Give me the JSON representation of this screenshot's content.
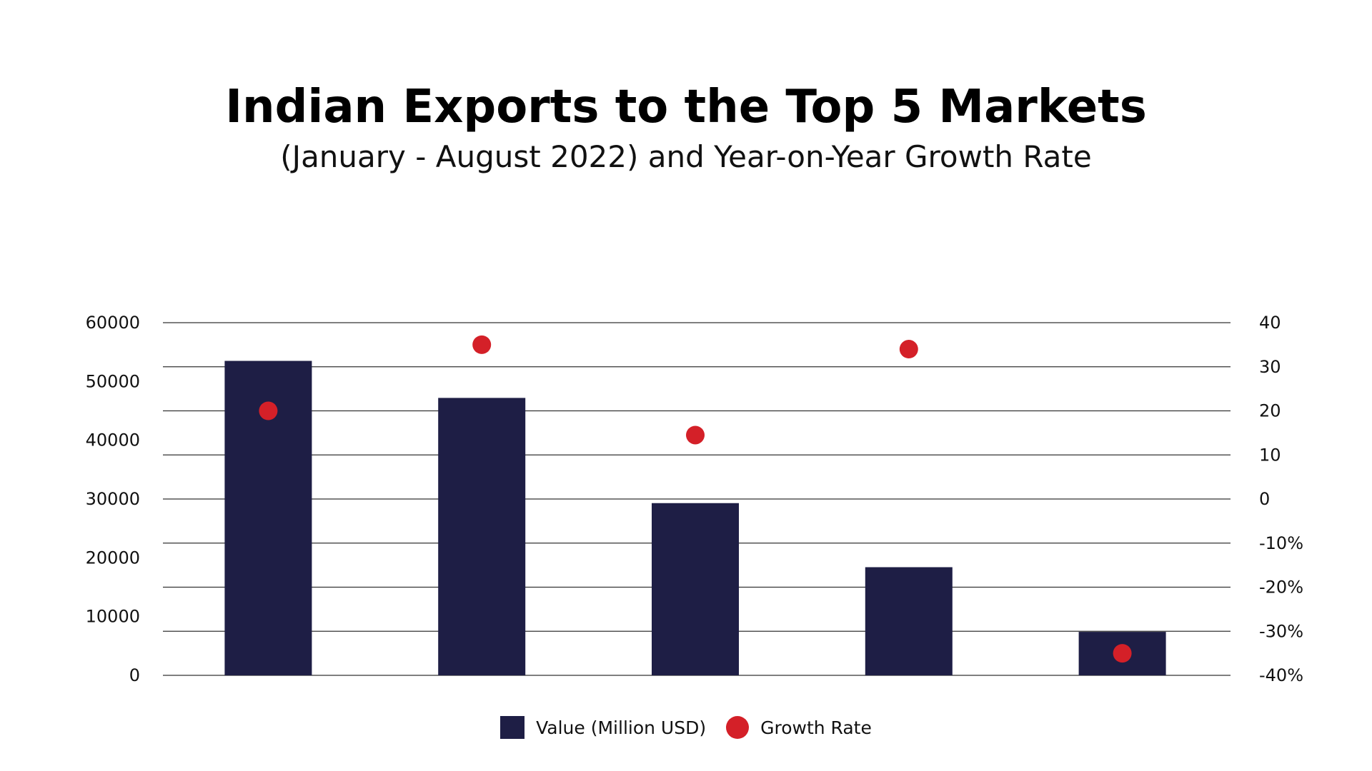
{
  "header": {
    "title": "Indian Exports to the Top 5 Markets",
    "subtitle": "(January - August 2022) and Year-on-Year Growth Rate"
  },
  "colors": {
    "bar": "#1e1e45",
    "dot": "#d42028",
    "grid": "#333333",
    "text": "#111111"
  },
  "legend": {
    "bar_label": "Value (Million USD)",
    "dot_label": "Growth Rate"
  },
  "chart_data": {
    "type": "bar",
    "title": "Indian Exports to the Top 5 Markets",
    "subtitle": "(January - August 2022) and Year-on-Year Growth Rate",
    "categories": [
      "",
      "",
      "",
      "",
      ""
    ],
    "series": [
      {
        "name": "Value (Million USD)",
        "type": "bar",
        "axis": "left",
        "values": [
          53500,
          47200,
          29300,
          18400,
          7400
        ]
      },
      {
        "name": "Growth Rate",
        "type": "scatter",
        "axis": "right",
        "values": [
          20,
          35,
          14.5,
          34,
          -35
        ]
      }
    ],
    "y_left": {
      "ylim": [
        0,
        60000
      ],
      "tick_labels": [
        "0",
        "10000",
        "20000",
        "30000",
        "40000",
        "50000",
        "60000"
      ]
    },
    "y_right": {
      "ylim": [
        -40,
        40
      ],
      "tick_labels": [
        "-40%",
        "-30%",
        "-20%",
        "-10%",
        "0",
        "10",
        "20",
        "30",
        "40"
      ]
    },
    "grid": true,
    "legend_position": "bottom-center"
  }
}
